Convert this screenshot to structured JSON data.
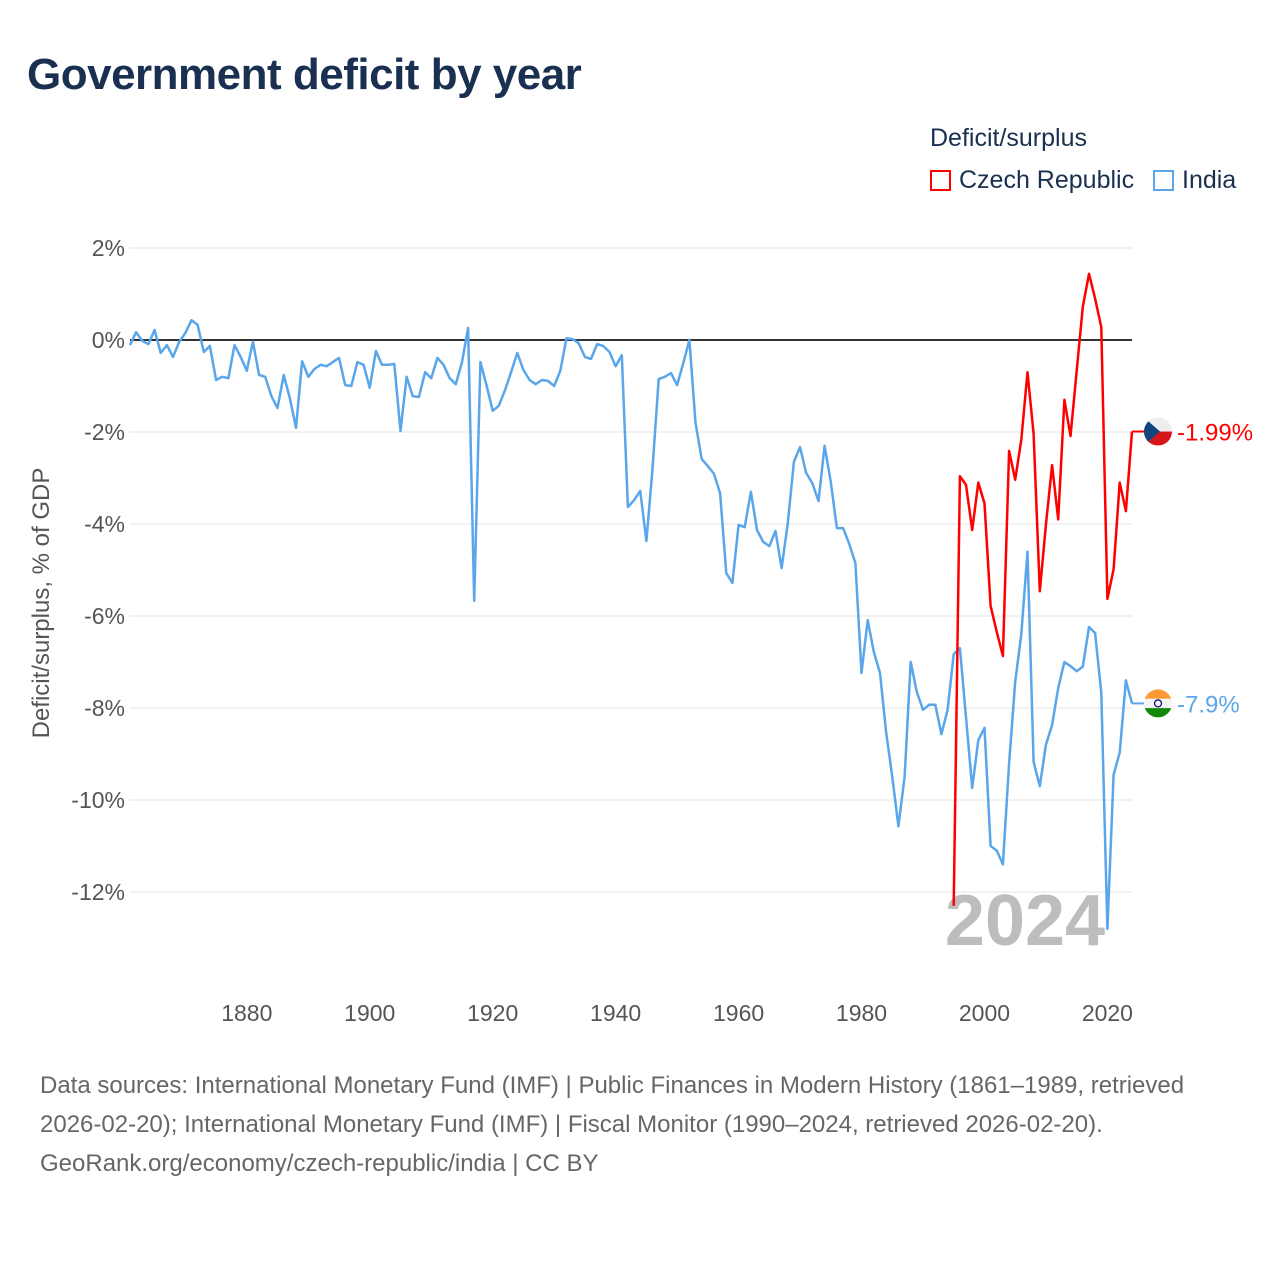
{
  "title": "Government deficit by year",
  "chart_data": {
    "type": "line",
    "title": "Government deficit by year",
    "xlabel": "",
    "ylabel": "Deficit/surplus, % of GDP",
    "xlim": [
      1861,
      2024
    ],
    "ylim": [
      -13,
      2
    ],
    "yticks": [
      2,
      0,
      -2,
      -4,
      -6,
      -8,
      -10,
      -12
    ],
    "ytick_labels": [
      "2%",
      "0%",
      "-2%",
      "-4%",
      "-6%",
      "-8%",
      "-10%",
      "-12%"
    ],
    "xticks": [
      1880,
      1900,
      1920,
      1940,
      1960,
      1980,
      2000,
      2020
    ],
    "xtick_labels": [
      "1880",
      "1900",
      "1920",
      "1940",
      "1960",
      "1980",
      "2000",
      "2020"
    ],
    "grid": true,
    "legend_title": "Deficit/surplus",
    "legend_position": "top-right",
    "year_label": "2024",
    "series": [
      {
        "name": "Czech Republic",
        "color": "#ff0000",
        "start_year": 1995,
        "end_label": "-1.99%",
        "values": [
          -12.3,
          -2.96,
          -3.15,
          -4.13,
          -3.1,
          -3.55,
          -5.78,
          -6.35,
          -6.87,
          -2.41,
          -3.04,
          -2.17,
          -0.7,
          -2.04,
          -5.46,
          -4.02,
          -2.72,
          -3.9,
          -1.3,
          -2.09,
          -0.67,
          0.72,
          1.44,
          0.9,
          0.28,
          -5.63,
          -4.98,
          -3.1,
          -3.72,
          -1.99
        ]
      },
      {
        "name": "India",
        "color": "#5aa6ea",
        "start_year": 1861,
        "end_label": "-7.9%",
        "values": [
          -0.11,
          0.17,
          -0.02,
          -0.09,
          0.22,
          -0.28,
          -0.11,
          -0.37,
          -0.04,
          0.15,
          0.43,
          0.33,
          -0.26,
          -0.13,
          -0.87,
          -0.8,
          -0.83,
          -0.11,
          -0.37,
          -0.67,
          -0.04,
          -0.76,
          -0.8,
          -1.22,
          -1.48,
          -0.76,
          -1.26,
          -1.91,
          -0.46,
          -0.8,
          -0.63,
          -0.54,
          -0.57,
          -0.48,
          -0.39,
          -0.98,
          -1.0,
          -0.48,
          -0.54,
          -1.04,
          -0.24,
          -0.54,
          -0.54,
          -0.52,
          -1.98,
          -0.8,
          -1.22,
          -1.24,
          -0.7,
          -0.83,
          -0.39,
          -0.54,
          -0.83,
          -0.96,
          -0.48,
          0.26,
          -5.67,
          -0.48,
          -0.98,
          -1.54,
          -1.43,
          -1.09,
          -0.7,
          -0.28,
          -0.65,
          -0.87,
          -0.96,
          -0.87,
          -0.89,
          -1.0,
          -0.67,
          0.04,
          0.02,
          -0.07,
          -0.37,
          -0.41,
          -0.09,
          -0.13,
          -0.26,
          -0.57,
          -0.33,
          -3.63,
          -3.48,
          -3.28,
          -4.37,
          -2.8,
          -0.85,
          -0.8,
          -0.72,
          -0.98,
          -0.5,
          0.0,
          -1.8,
          -2.59,
          -2.74,
          -2.91,
          -3.33,
          -5.07,
          -5.28,
          -4.02,
          -4.07,
          -3.3,
          -4.13,
          -4.39,
          -4.48,
          -4.15,
          -4.96,
          -3.98,
          -2.65,
          -2.33,
          -2.89,
          -3.11,
          -3.5,
          -2.3,
          -3.09,
          -4.09,
          -4.09,
          -4.43,
          -4.85,
          -7.24,
          -6.09,
          -6.78,
          -7.24,
          -8.52,
          -9.5,
          -10.57,
          -9.5,
          -7.0,
          -7.65,
          -8.04,
          -7.93,
          -7.93,
          -8.57,
          -8.04,
          -6.83,
          -6.7,
          -8.2,
          -9.74,
          -8.7,
          -8.43,
          -11.0,
          -11.1,
          -11.4,
          -9.2,
          -7.43,
          -6.4,
          -4.6,
          -9.17,
          -9.7,
          -8.8,
          -8.37,
          -7.57,
          -7.0,
          -7.09,
          -7.2,
          -7.1,
          -6.24,
          -6.37,
          -7.67,
          -12.8,
          -9.45,
          -8.97,
          -7.4,
          -7.9
        ]
      }
    ]
  },
  "footer": {
    "sources": "Data sources: International Monetary Fund (IMF) | Public Finances in Modern History (1861–1989, retrieved 2026-02-20); International Monetary Fund (IMF) | Fiscal Monitor (1990–2024, retrieved 2026-02-20).",
    "credit": "GeoRank.org/economy/czech-republic/india | CC BY"
  }
}
